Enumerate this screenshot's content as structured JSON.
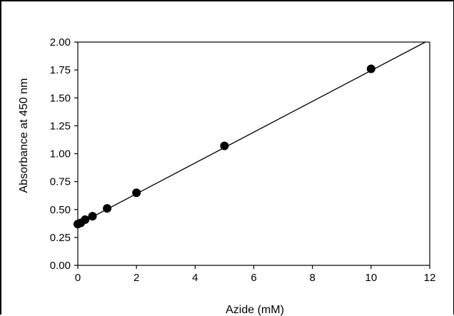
{
  "chart_data": {
    "type": "scatter",
    "xlabel": "Azide (mM)",
    "ylabel": "Absorbance at 450 nm",
    "xlim": [
      0,
      12
    ],
    "ylim": [
      0,
      2.0
    ],
    "x_ticks": [
      "0",
      "2",
      "4",
      "6",
      "8",
      "10",
      "12"
    ],
    "y_ticks": [
      "0.00",
      "0.25",
      "0.50",
      "0.75",
      "1.00",
      "1.25",
      "1.50",
      "1.75",
      "2.00"
    ],
    "grid": false,
    "legend": "none",
    "points": {
      "x": [
        0,
        0.1,
        0.25,
        0.5,
        1,
        2,
        5,
        10
      ],
      "y": [
        0.37,
        0.38,
        0.41,
        0.44,
        0.51,
        0.65,
        1.07,
        1.76
      ]
    },
    "fit_line": {
      "x": [
        0,
        11.85
      ],
      "y": [
        0.365,
        2.0
      ]
    },
    "colors": {
      "marker": "#000000",
      "line": "#000000",
      "axes": "#000000"
    }
  }
}
